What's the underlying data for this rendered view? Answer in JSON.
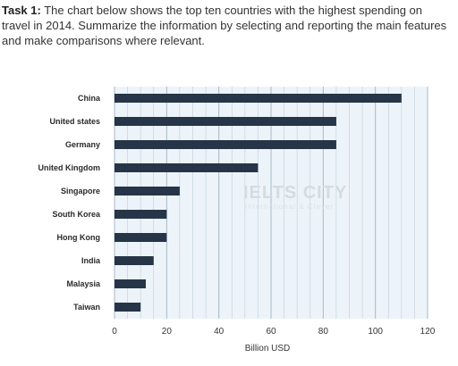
{
  "task": {
    "label": "Task 1:",
    "text": "The chart below shows the top ten countries with the highest spending on travel in 2014. Summarize the information by selecting and reporting the main features and make comparisons where relevant."
  },
  "watermark": {
    "brand": "IELTS CITY",
    "tagline": "International & Clever"
  },
  "colors": {
    "bar": "#263547",
    "grid": "#9fb3c4",
    "plot_bg": "#edf4f9"
  },
  "chart_data": {
    "type": "bar",
    "orientation": "horizontal",
    "title": "",
    "xlabel": "Billion USD",
    "ylabel": "",
    "categories": [
      "China",
      "United states",
      "Germany",
      "United Kingdom",
      "Singapore",
      "South Korea",
      "Hong Kong",
      "India",
      "Malaysia",
      "Taiwan"
    ],
    "values": [
      110,
      85,
      85,
      55,
      25,
      20,
      20,
      15,
      12,
      10
    ],
    "xlim": [
      0,
      120
    ],
    "xticks": [
      "0",
      "20",
      "40",
      "60",
      "80",
      "100",
      "120"
    ],
    "grid": true
  }
}
